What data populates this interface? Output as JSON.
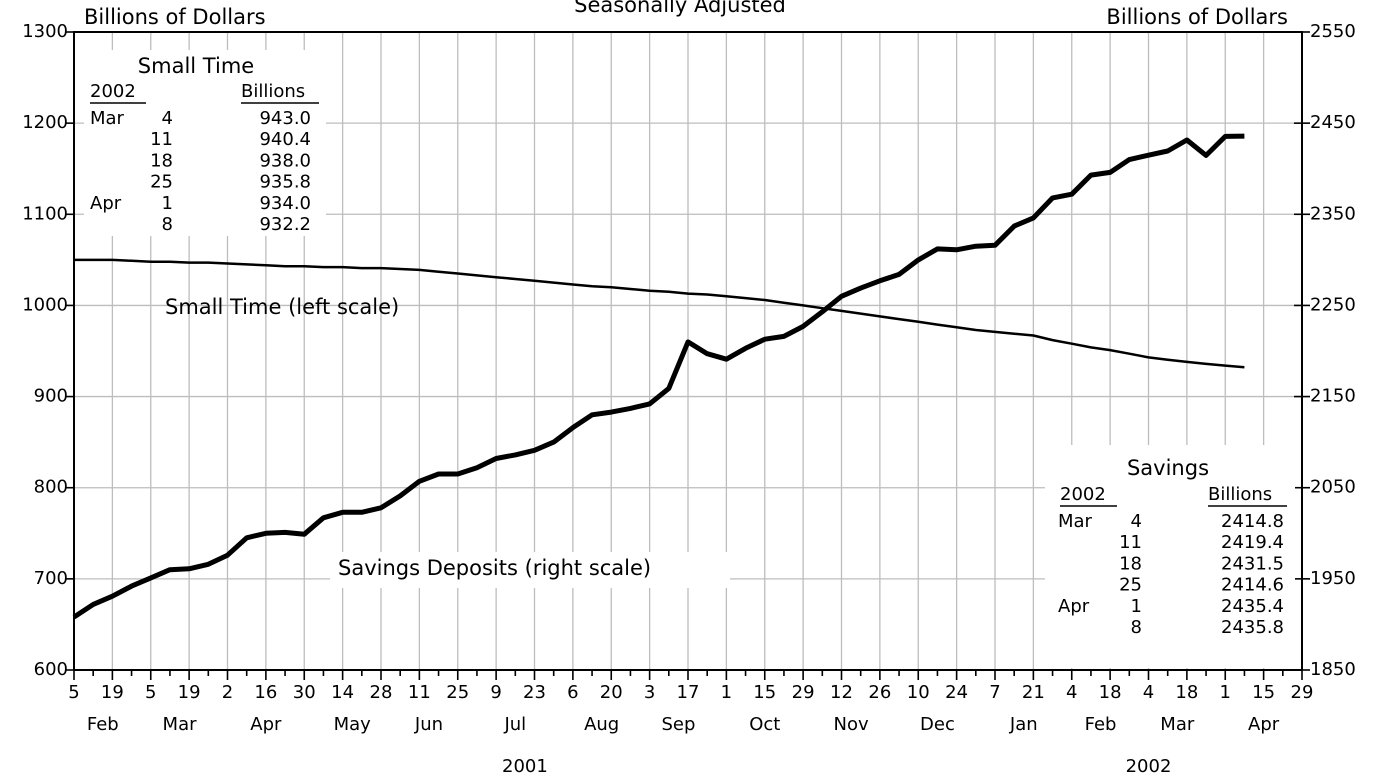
{
  "chart_data": {
    "type": "line",
    "title": "Seasonally Adjusted",
    "y_label": "Billions of Dollars",
    "y2_label": "Billions of Dollars",
    "ylim": [
      600,
      1300
    ],
    "yticks": [
      600,
      700,
      800,
      900,
      1000,
      1100,
      1200,
      1300
    ],
    "y2lim": [
      1850,
      2550
    ],
    "y2ticks": [
      1850,
      1950,
      2050,
      2150,
      2250,
      2350,
      2450,
      2550
    ],
    "grid": true,
    "x_axis": {
      "years": [
        {
          "label": "2001",
          "months": [
            {
              "label": "Feb",
              "days": [
                "5",
                null,
                "19",
                null
              ]
            },
            {
              "label": "Mar",
              "days": [
                "5",
                null,
                "19",
                null
              ]
            },
            {
              "label": "Apr",
              "days": [
                "2",
                null,
                "16",
                null,
                "30"
              ]
            },
            {
              "label": "May",
              "days": [
                null,
                "14",
                null,
                "28"
              ]
            },
            {
              "label": "Jun",
              "days": [
                null,
                "11",
                null,
                "25"
              ]
            },
            {
              "label": "Jul",
              "days": [
                null,
                "9",
                null,
                "23",
                null
              ]
            },
            {
              "label": "Aug",
              "days": [
                "6",
                null,
                "20",
                null
              ]
            },
            {
              "label": "Sep",
              "days": [
                "3",
                null,
                "17",
                null
              ]
            },
            {
              "label": "Oct",
              "days": [
                "1",
                null,
                "15",
                null,
                "29"
              ]
            },
            {
              "label": "Nov",
              "days": [
                null,
                "12",
                null,
                "26"
              ]
            },
            {
              "label": "Dec",
              "days": [
                null,
                "10",
                null,
                "24",
                null
              ]
            }
          ]
        },
        {
          "label": "2002",
          "months": [
            {
              "label": "Jan",
              "days": [
                "7",
                null,
                "21",
                null
              ]
            },
            {
              "label": "Feb",
              "days": [
                "4",
                null,
                "18",
                null
              ]
            },
            {
              "label": "Mar",
              "days": [
                "4",
                null,
                "18",
                null
              ]
            },
            {
              "label": "Apr",
              "days": [
                "1",
                null,
                "15",
                null,
                "29"
              ]
            }
          ]
        }
      ]
    },
    "series": [
      {
        "name": "Small Time (left scale)",
        "color": "#000000",
        "line_width": 2.5,
        "values": [
          1050,
          1050,
          1050,
          1049,
          1048,
          1048,
          1047,
          1047,
          1046,
          1045,
          1044,
          1043,
          1043,
          1042,
          1042,
          1041,
          1041,
          1040,
          1039,
          1037,
          1035,
          1033,
          1031,
          1029,
          1027,
          1025,
          1023,
          1021,
          1020,
          1018,
          1016,
          1015,
          1013,
          1012,
          1010,
          1008,
          1006,
          1003,
          1000,
          997,
          994,
          991,
          988,
          985,
          982,
          979,
          976,
          973,
          971,
          969,
          967,
          962,
          958,
          954,
          951,
          947,
          943.0,
          940.4,
          938.0,
          935.8,
          934.0,
          932.2,
          null,
          null,
          null
        ]
      },
      {
        "name": "Savings Deposits (right scale)",
        "color": "#000000",
        "line_width": 5,
        "axis": "y2",
        "values": [
          1908,
          1922,
          1931,
          1942,
          1951,
          1960,
          1961,
          1966,
          1976,
          1995,
          2000,
          2001,
          1999,
          2017,
          2023,
          2023,
          2028,
          2041,
          2057,
          2065,
          2065,
          2072,
          2082,
          2086,
          2091,
          2100,
          2116,
          2130,
          2133,
          2137,
          2142,
          2159,
          2210,
          2197,
          2191,
          2203,
          2213,
          2216,
          2227,
          2243,
          2260,
          2269,
          2277,
          2284,
          2300,
          2312,
          2311,
          2315,
          2316,
          2337,
          2346,
          2368,
          2372,
          2393,
          2396,
          2410,
          2414.8,
          2419.4,
          2431.5,
          2414.6,
          2435.4,
          2435.8,
          null,
          null,
          null
        ]
      }
    ],
    "insets": [
      {
        "title": "Small Time",
        "header": [
          "2002",
          "Billions"
        ],
        "rows": [
          [
            "Mar",
            "4",
            "943.0"
          ],
          [
            null,
            "11",
            "940.4"
          ],
          [
            null,
            "18",
            "938.0"
          ],
          [
            null,
            "25",
            "935.8"
          ],
          [
            "Apr",
            "1",
            "934.0"
          ],
          [
            null,
            "8",
            "932.2"
          ]
        ]
      },
      {
        "title": "Savings",
        "header": [
          "2002",
          "Billions"
        ],
        "rows": [
          [
            "Mar",
            "4",
            "2414.8"
          ],
          [
            null,
            "11",
            "2419.4"
          ],
          [
            null,
            "18",
            "2431.5"
          ],
          [
            null,
            "25",
            "2414.6"
          ],
          [
            "Apr",
            "1",
            "2435.4"
          ],
          [
            null,
            "8",
            "2435.8"
          ]
        ]
      }
    ]
  }
}
